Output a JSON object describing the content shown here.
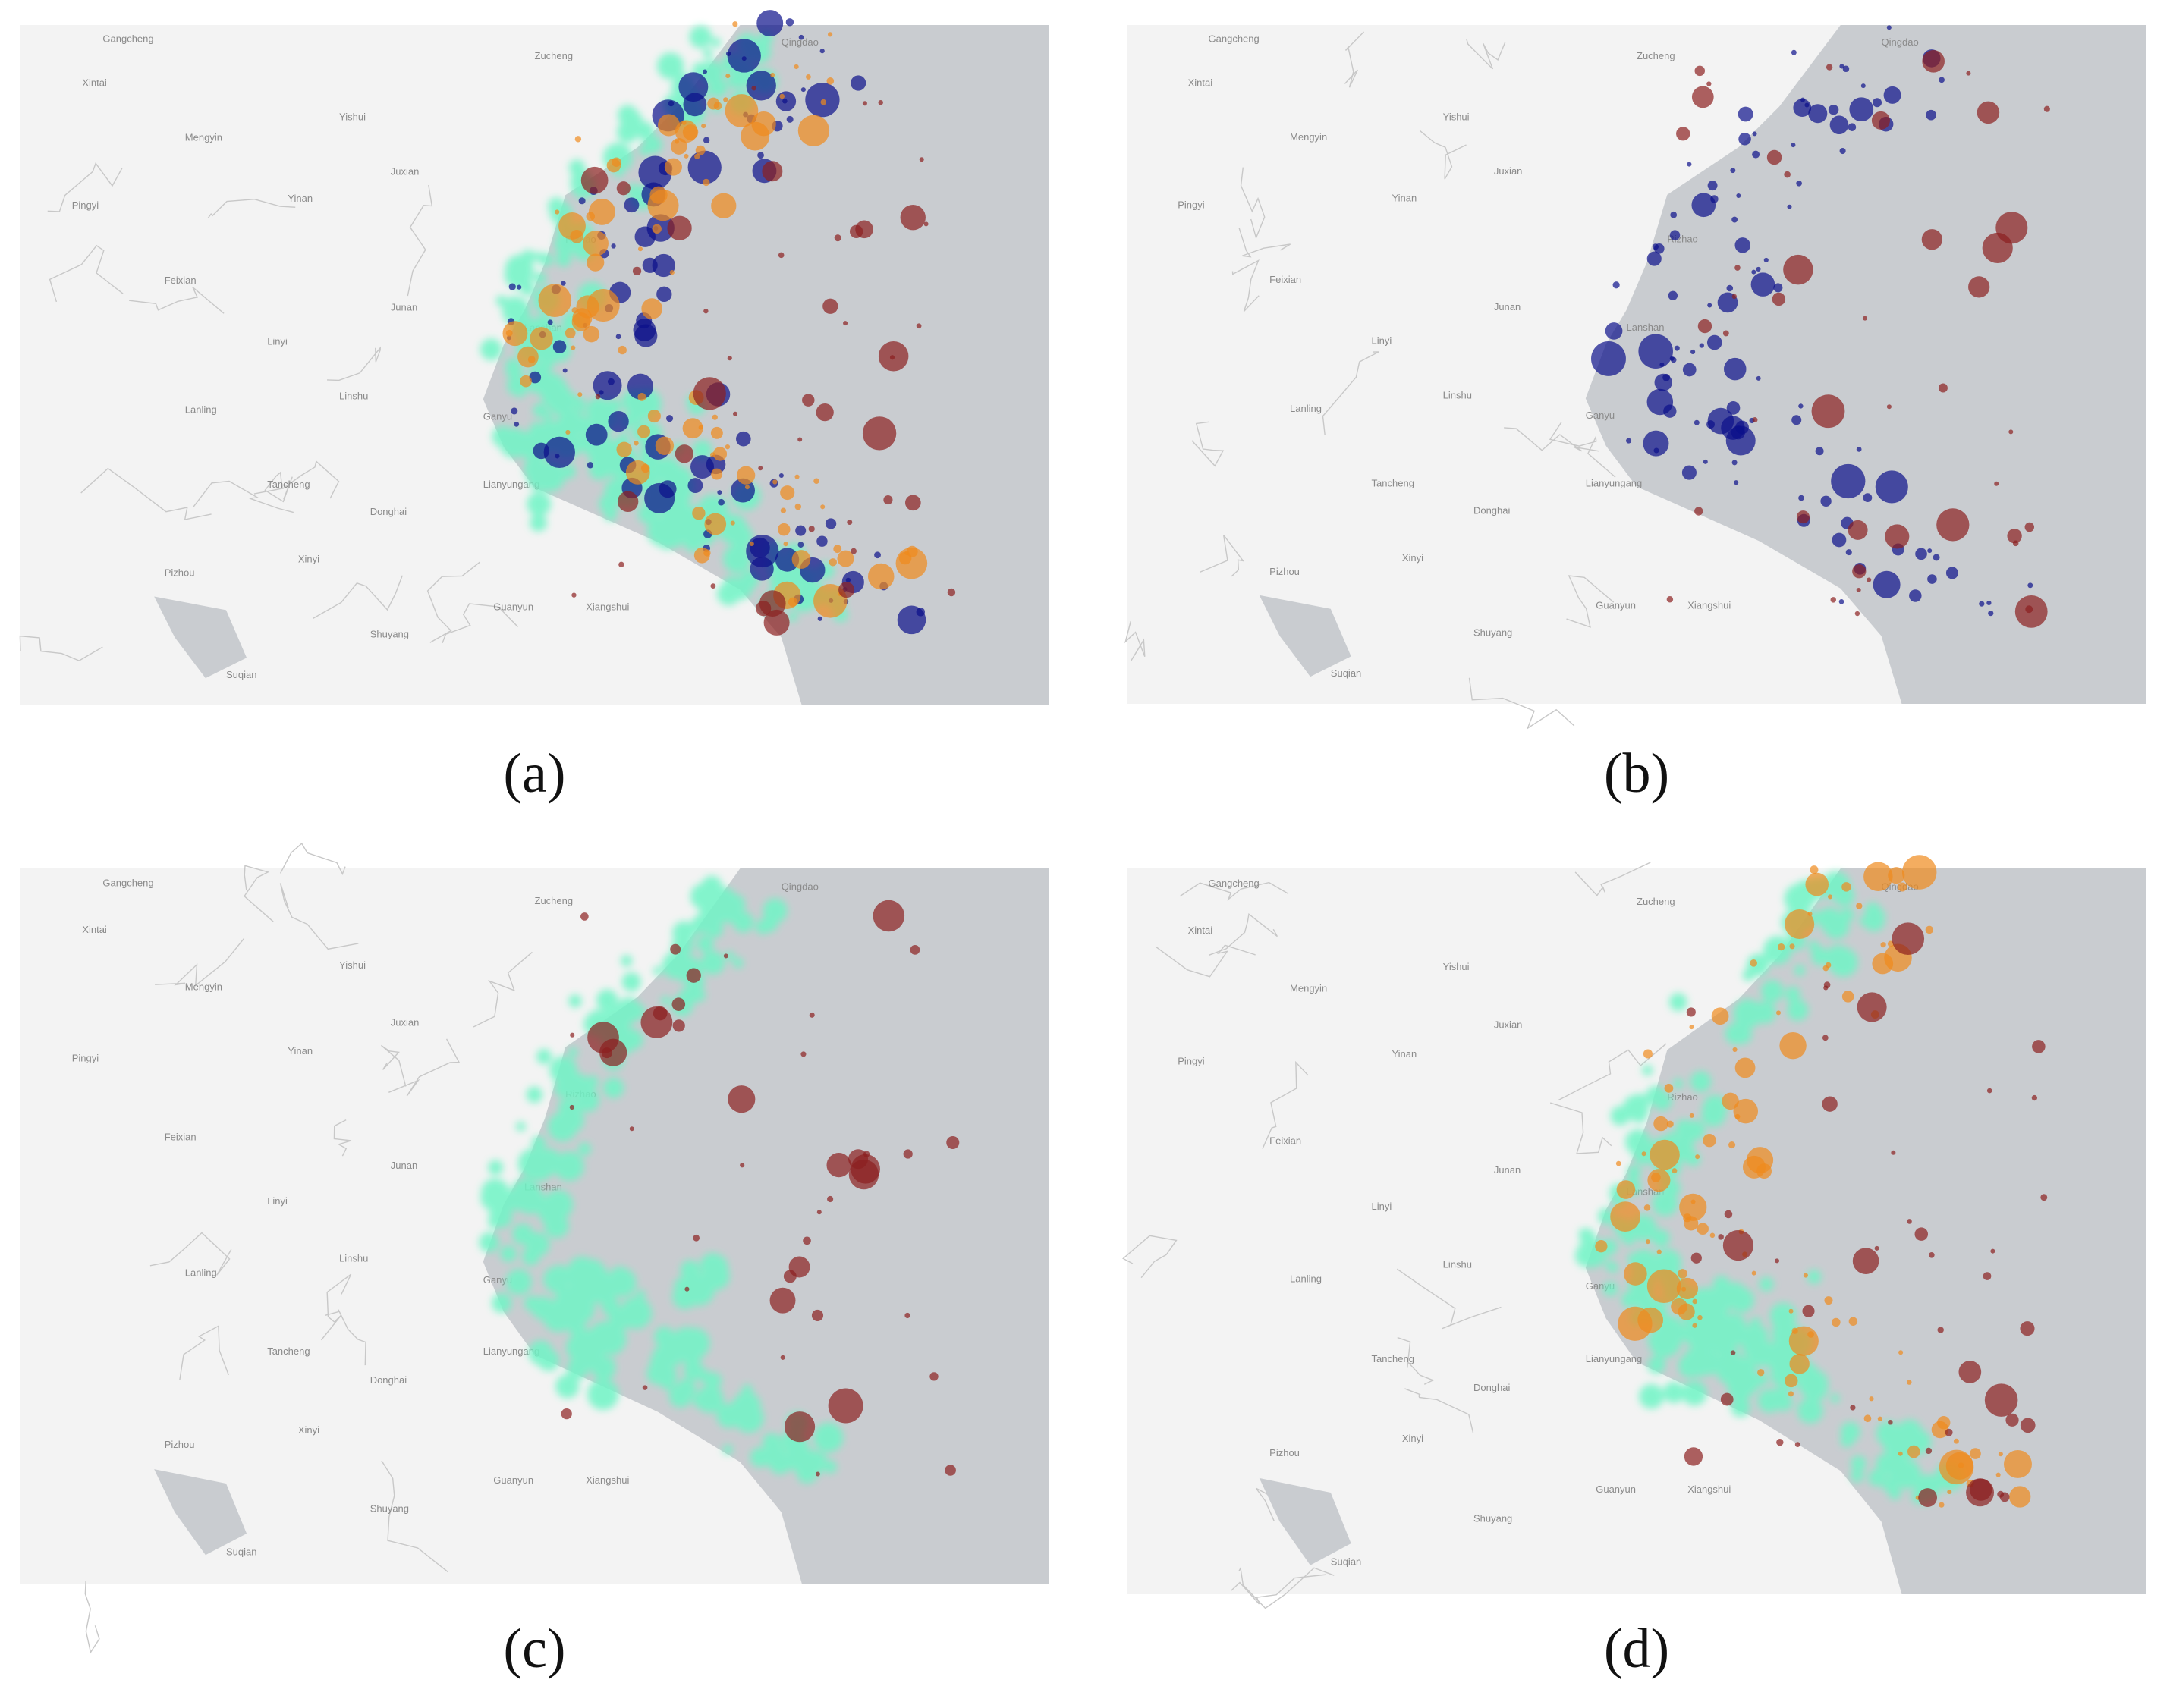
{
  "panels": [
    {
      "caption": "(a)"
    },
    {
      "caption": "(b)"
    },
    {
      "caption": "(c)"
    },
    {
      "caption": "(d)"
    }
  ],
  "map_labels": [
    "Gangcheng",
    "Zucheng",
    "Qingdao",
    "Xintai",
    "Mengyin",
    "Yishui",
    "Juxian",
    "Yinan",
    "Pingyi",
    "Rizhao",
    "Feixian",
    "Junan",
    "Linyi",
    "Lanshan",
    "Lanling",
    "Linshu",
    "Ganyu",
    "Lianyungang",
    "Tancheng",
    "Donghai",
    "Pizhou",
    "Xinyi",
    "Guanyun",
    "Xiangshui",
    "Shuyang",
    "Suqian"
  ]
}
